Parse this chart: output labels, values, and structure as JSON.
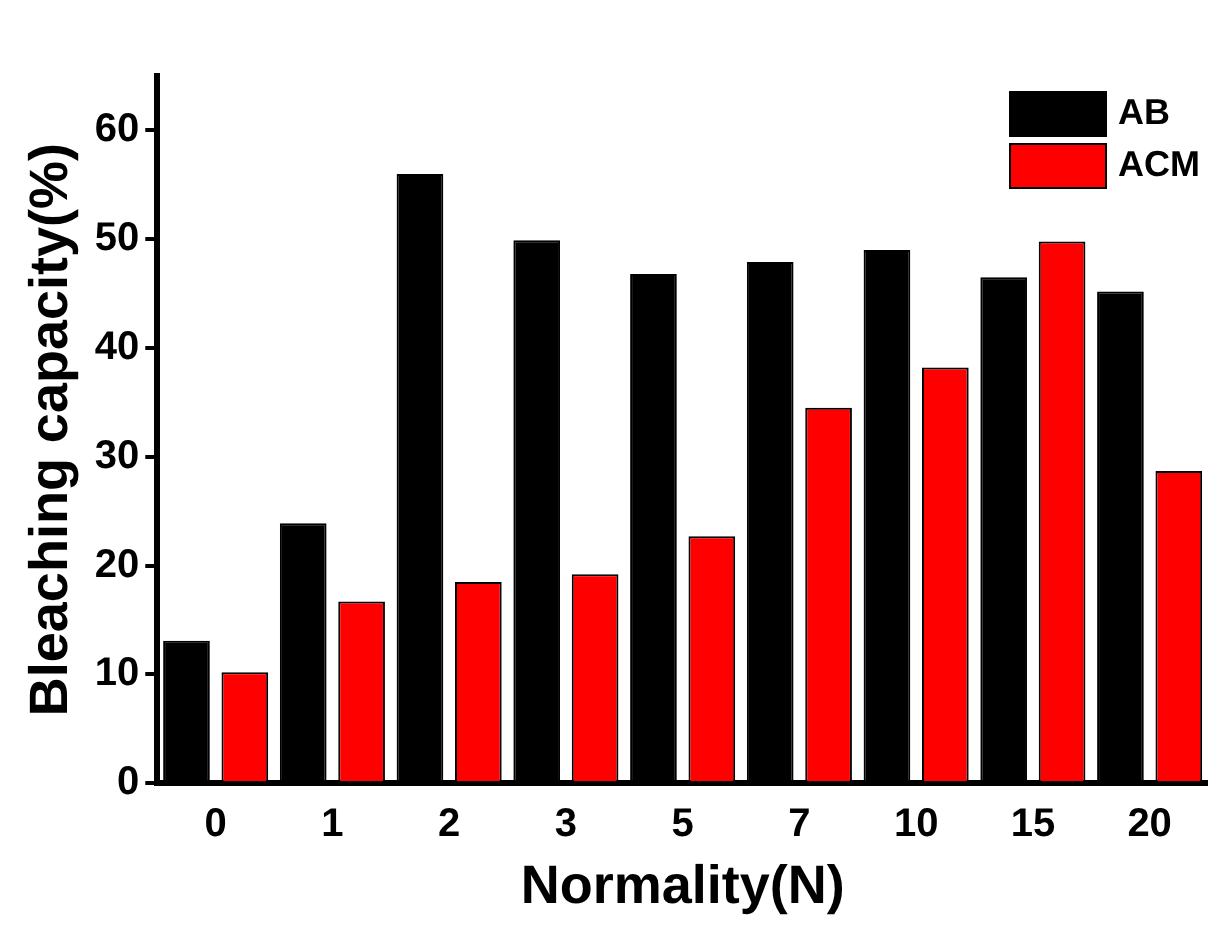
{
  "chart_data": {
    "type": "bar",
    "xlabel": "Normality(N)",
    "ylabel": "Bleaching capacity(%)",
    "categories": [
      "0",
      "1",
      "2",
      "3",
      "5",
      "7",
      "10",
      "15",
      "20"
    ],
    "series": [
      {
        "name": "AB",
        "color": "#000000",
        "values": [
          13.1,
          23.9,
          56.0,
          49.9,
          46.8,
          47.9,
          49.0,
          46.5,
          45.2
        ]
      },
      {
        "name": "ACM",
        "color": "#ff0000",
        "values": [
          10.2,
          16.7,
          18.5,
          19.2,
          22.7,
          34.5,
          38.2,
          49.8,
          28.7
        ]
      }
    ],
    "ylim": [
      0,
      65
    ],
    "yticks": [
      0,
      10,
      20,
      30,
      40,
      50,
      60
    ],
    "grid": false,
    "legend": "top right"
  }
}
